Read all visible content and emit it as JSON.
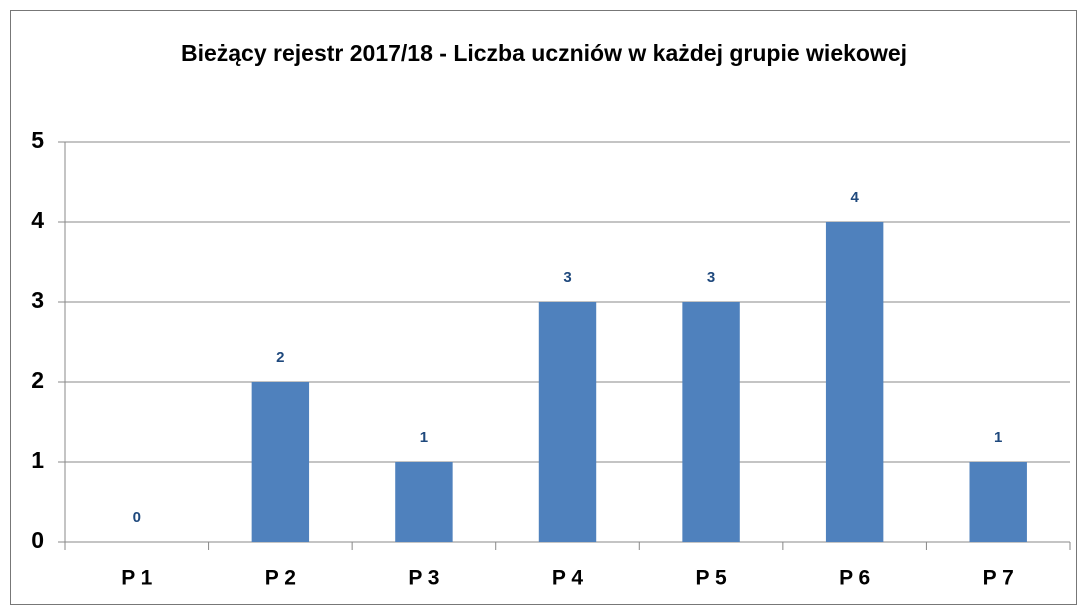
{
  "chart_data": {
    "type": "bar",
    "title": "Bieżący rejestr 2017/18 - Liczba uczniów w każdej grupie wiekowej",
    "categories": [
      "P 1",
      "P 2",
      "P 3",
      "P 4",
      "P 5",
      "P 6",
      "P 7"
    ],
    "values": [
      0,
      2,
      1,
      3,
      3,
      4,
      1
    ],
    "color": "#4f81bd",
    "label_color": "#1f497d",
    "ylim": [
      0,
      5
    ],
    "yticks": [
      0,
      1,
      2,
      3,
      4,
      5
    ],
    "grid": true
  }
}
